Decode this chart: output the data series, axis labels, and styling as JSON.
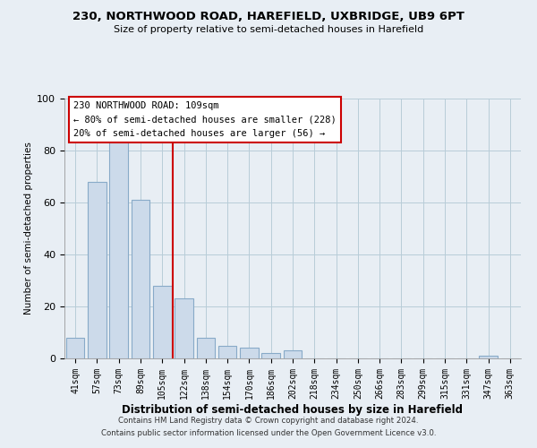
{
  "title1": "230, NORTHWOOD ROAD, HAREFIELD, UXBRIDGE, UB9 6PT",
  "title2": "Size of property relative to semi-detached houses in Harefield",
  "xlabel": "Distribution of semi-detached houses by size in Harefield",
  "ylabel": "Number of semi-detached properties",
  "bar_labels": [
    "41sqm",
    "57sqm",
    "73sqm",
    "89sqm",
    "105sqm",
    "122sqm",
    "138sqm",
    "154sqm",
    "170sqm",
    "186sqm",
    "202sqm",
    "218sqm",
    "234sqm",
    "250sqm",
    "266sqm",
    "283sqm",
    "299sqm",
    "315sqm",
    "331sqm",
    "347sqm",
    "363sqm"
  ],
  "bar_values": [
    8,
    68,
    84,
    61,
    28,
    23,
    8,
    5,
    4,
    2,
    3,
    0,
    0,
    0,
    0,
    0,
    0,
    0,
    0,
    1,
    0
  ],
  "bar_color": "#ccdaea",
  "bar_edge_color": "#88aac8",
  "vline_x": 4.5,
  "vline_color": "#cc0000",
  "ylim": [
    0,
    100
  ],
  "yticks": [
    0,
    20,
    40,
    60,
    80,
    100
  ],
  "annotation_title": "230 NORTHWOOD ROAD: 109sqm",
  "annotation_line1": "← 80% of semi-detached houses are smaller (228)",
  "annotation_line2": "20% of semi-detached houses are larger (56) →",
  "footnote1": "Contains HM Land Registry data © Crown copyright and database right 2024.",
  "footnote2": "Contains public sector information licensed under the Open Government Licence v3.0.",
  "bg_color": "#e8eef4",
  "plot_bg_color": "#e8eef4",
  "grid_color": "#b8ccd8"
}
